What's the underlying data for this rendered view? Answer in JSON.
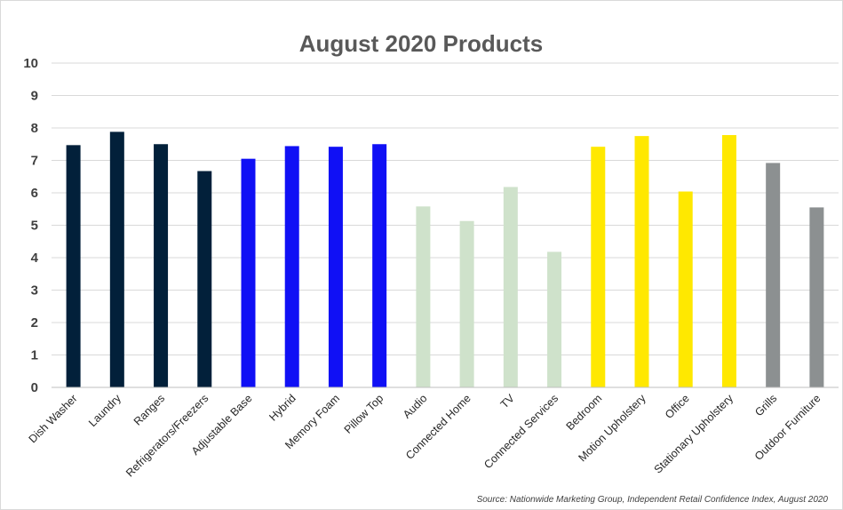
{
  "chart_data": {
    "type": "bar",
    "title": "August 2020 Products",
    "xlabel": "",
    "ylabel": "",
    "ylim": [
      0,
      10
    ],
    "yticks": [
      0,
      1,
      2,
      3,
      4,
      5,
      6,
      7,
      8,
      9,
      10
    ],
    "grid": true,
    "legend": "none",
    "categories": [
      "Dish Washer",
      "Laundry",
      "Ranges",
      "Refrigerators/Freezers",
      "Adjustable Base",
      "Hybrid",
      "Memory Foam",
      "Pillow Top",
      "Audio",
      "Connected Home",
      "TV",
      "Connected Services",
      "Bedroom",
      "Motion Upholstery",
      "Office",
      "Stationary Upholstery",
      "Grills",
      "Outdoor Furniture"
    ],
    "values": [
      7.47,
      7.88,
      7.5,
      6.67,
      7.05,
      7.44,
      7.42,
      7.5,
      5.58,
      5.13,
      6.18,
      4.18,
      7.42,
      7.75,
      6.04,
      7.78,
      6.92,
      5.55
    ],
    "bar_colors": [
      "#02203a",
      "#02203a",
      "#02203a",
      "#02203a",
      "#1010f5",
      "#1010f5",
      "#1010f5",
      "#1010f5",
      "#cfe2cb",
      "#cfe2cb",
      "#cfe2cb",
      "#cfe2cb",
      "#ffe800",
      "#ffe800",
      "#ffe800",
      "#ffe800",
      "#8c9091",
      "#8c9091"
    ],
    "source": "Source: Nationwide Marketing Group, Independent Retail Confidence Index, August 2020"
  }
}
